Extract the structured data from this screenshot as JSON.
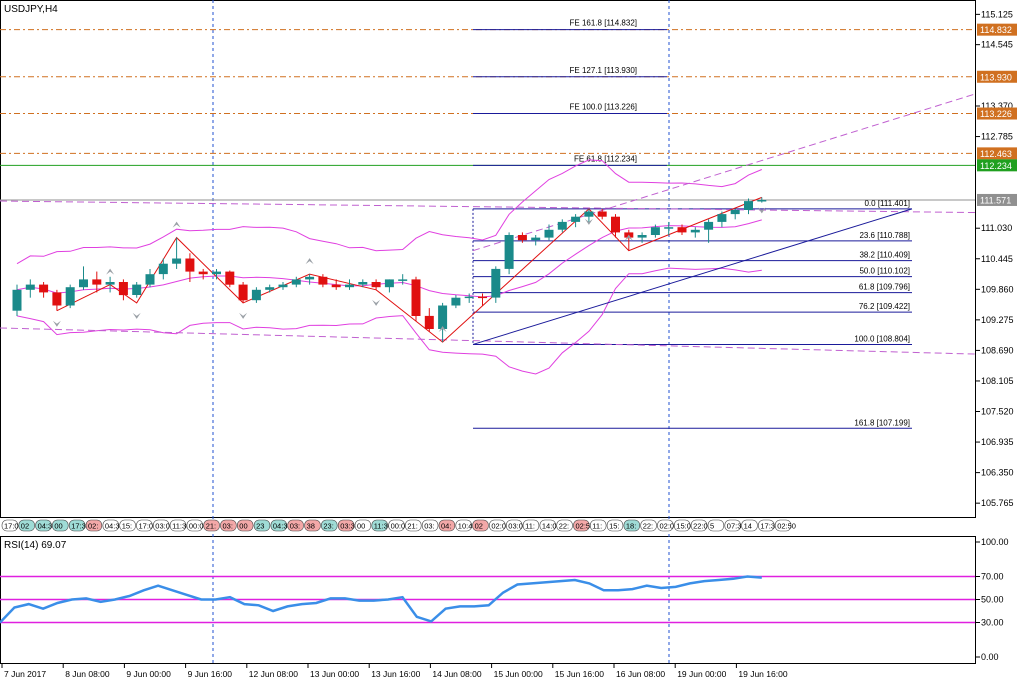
{
  "window": {
    "title": "USDJPY,H4"
  },
  "colors": {
    "bull": "#1a8a8a",
    "bear": "#e01010",
    "bands": "#e040e0",
    "trend_dash": "#c060d0",
    "fib": "#1a1a9a",
    "fe_level": "#d07020",
    "green_level": "#20a020",
    "price_line": "#909090",
    "rsi": "#3a8ee8",
    "rsi_level": "#e020e0",
    "grid_sep": "#2050d0"
  },
  "chart_data": [
    {
      "type": "candlestick",
      "title": "USDJPY,H4",
      "ylim": [
        105.5,
        115.4
      ],
      "y_ticks": [
        "115.125",
        "114.545",
        "113.370",
        "112.785",
        "111.030",
        "110.445",
        "109.860",
        "109.275",
        "108.690",
        "108.105",
        "107.520",
        "106.935",
        "106.350",
        "105.765"
      ],
      "price_labels": [
        {
          "text": "114.832",
          "value": 114.832,
          "color": "#d07020"
        },
        {
          "text": "113.930",
          "value": 113.93,
          "color": "#d07020"
        },
        {
          "text": "113.226",
          "value": 113.226,
          "color": "#d07020"
        },
        {
          "text": "112.463",
          "value": 112.463,
          "color": "#d07020"
        },
        {
          "text": "112.234",
          "value": 112.234,
          "color": "#20a020"
        },
        {
          "text": "111.571",
          "value": 111.571,
          "color": "#909090"
        }
      ],
      "fe_levels": [
        {
          "text": "FE 161.8 [114.832]",
          "value": 114.832
        },
        {
          "text": "FE 127.1 [113.930]",
          "value": 113.93
        },
        {
          "text": "FE 100.0 [113.226]",
          "value": 113.226
        },
        {
          "text": "FE 61.8 [112.234]",
          "value": 112.234
        }
      ],
      "fib_levels": [
        {
          "text": "0.0 [111.401]",
          "value": 111.401
        },
        {
          "text": "23.6 [110.788]",
          "value": 110.788
        },
        {
          "text": "38.2 [110.409]",
          "value": 110.409
        },
        {
          "text": "50.0 [110.102]",
          "value": 110.102
        },
        {
          "text": "61.8 [109.796]",
          "value": 109.796
        },
        {
          "text": "76.2 [109.422]",
          "value": 109.422
        },
        {
          "text": "100.0 [108.804]",
          "value": 108.804
        },
        {
          "text": "161.8 [107.199]",
          "value": 107.199
        }
      ],
      "candles": [
        [
          109.45,
          109.95,
          109.35,
          109.85
        ],
        [
          109.85,
          110.05,
          109.7,
          109.95
        ],
        [
          109.95,
          110.0,
          109.7,
          109.8
        ],
        [
          109.8,
          109.85,
          109.45,
          109.55
        ],
        [
          109.55,
          109.95,
          109.5,
          109.9
        ],
        [
          109.9,
          110.3,
          109.85,
          110.05
        ],
        [
          110.05,
          110.2,
          109.8,
          109.95
        ],
        [
          109.95,
          110.1,
          109.8,
          110.0
        ],
        [
          110.0,
          110.05,
          109.65,
          109.75
        ],
        [
          109.75,
          110.0,
          109.7,
          109.95
        ],
        [
          109.95,
          110.25,
          109.9,
          110.15
        ],
        [
          110.15,
          110.45,
          110.05,
          110.35
        ],
        [
          110.35,
          110.85,
          110.25,
          110.45
        ],
        [
          110.45,
          110.55,
          110.0,
          110.2
        ],
        [
          110.2,
          110.25,
          110.05,
          110.15
        ],
        [
          110.15,
          110.25,
          110.05,
          110.2
        ],
        [
          110.2,
          110.22,
          109.9,
          109.95
        ],
        [
          109.95,
          110.0,
          109.6,
          109.65
        ],
        [
          109.65,
          109.9,
          109.6,
          109.85
        ],
        [
          109.85,
          109.95,
          109.8,
          109.9
        ],
        [
          109.9,
          110.0,
          109.85,
          109.95
        ],
        [
          109.95,
          110.1,
          109.9,
          110.05
        ],
        [
          110.05,
          110.15,
          109.95,
          110.1
        ],
        [
          110.1,
          110.15,
          109.9,
          109.95
        ],
        [
          109.95,
          110.05,
          109.85,
          109.9
        ],
        [
          109.9,
          110.05,
          109.85,
          109.95
        ],
        [
          109.95,
          110.05,
          109.9,
          110.0
        ],
        [
          110.0,
          110.05,
          109.85,
          109.9
        ],
        [
          109.9,
          110.05,
          109.8,
          110.05
        ],
        [
          110.05,
          110.15,
          109.95,
          110.05
        ],
        [
          110.05,
          110.1,
          109.25,
          109.35
        ],
        [
          109.35,
          109.5,
          109.05,
          109.1
        ],
        [
          109.1,
          109.6,
          108.85,
          109.55
        ],
        [
          109.55,
          109.75,
          109.5,
          109.7
        ],
        [
          109.7,
          109.78,
          109.6,
          109.72
        ],
        [
          109.72,
          109.78,
          109.55,
          109.7
        ],
        [
          109.7,
          110.3,
          109.6,
          110.25
        ],
        [
          110.25,
          110.95,
          110.15,
          110.9
        ],
        [
          110.9,
          110.95,
          110.75,
          110.8
        ],
        [
          110.8,
          110.9,
          110.7,
          110.85
        ],
        [
          110.85,
          111.1,
          110.8,
          111.0
        ],
        [
          111.0,
          111.2,
          110.95,
          111.15
        ],
        [
          111.15,
          111.3,
          111.05,
          111.25
        ],
        [
          111.25,
          111.4,
          111.15,
          111.35
        ],
        [
          111.35,
          111.4,
          111.2,
          111.25
        ],
        [
          111.25,
          111.3,
          110.85,
          110.95
        ],
        [
          110.95,
          111.0,
          110.6,
          110.85
        ],
        [
          110.85,
          110.95,
          110.75,
          110.9
        ],
        [
          110.9,
          111.1,
          110.85,
          111.05
        ],
        [
          111.05,
          111.15,
          110.9,
          111.05
        ],
        [
          111.05,
          111.1,
          110.9,
          110.95
        ],
        [
          110.95,
          111.05,
          110.85,
          111.0
        ],
        [
          111.0,
          111.2,
          110.75,
          111.15
        ],
        [
          111.15,
          111.35,
          111.05,
          111.3
        ],
        [
          111.3,
          111.4,
          111.2,
          111.38
        ],
        [
          111.38,
          111.6,
          111.3,
          111.55
        ],
        [
          111.55,
          111.62,
          111.52,
          111.57
        ]
      ],
      "x_tick_labels": [
        "7 Jun 2017",
        "8 Jun 08:00",
        "9 Jun 00:00",
        "9 Jun 16:00",
        "12 Jun 08:00",
        "13 Jun 00:00",
        "13 Jun 16:00",
        "14 Jun 08:00",
        "15 Jun 00:00",
        "15 Jun 16:00",
        "16 Jun 08:00",
        "19 Jun 00:00",
        "19 Jun 16:00"
      ],
      "news_times": [
        {
          "text": "17:00",
          "color": "none"
        },
        {
          "text": "02",
          "color": "teal"
        },
        {
          "text": "04:30",
          "color": "teal"
        },
        {
          "text": "00",
          "color": "teal"
        },
        {
          "text": "17:30",
          "color": "teal"
        },
        {
          "text": "02:",
          "color": "red"
        },
        {
          "text": "04:30",
          "color": "none"
        },
        {
          "text": "15:",
          "color": "none"
        },
        {
          "text": "17:00",
          "color": "none"
        },
        {
          "text": "03:00",
          "color": "none"
        },
        {
          "text": "11:30",
          "color": "none"
        },
        {
          "text": "00:00",
          "color": "none"
        },
        {
          "text": "21:",
          "color": "red"
        },
        {
          "text": "03:",
          "color": "red"
        },
        {
          "text": "00",
          "color": "red"
        },
        {
          "text": "23",
          "color": "teal"
        },
        {
          "text": "04:30",
          "color": "teal"
        },
        {
          "text": "03:",
          "color": "red"
        },
        {
          "text": "38",
          "color": "red"
        },
        {
          "text": "23:",
          "color": "teal"
        },
        {
          "text": "03:30",
          "color": "red"
        },
        {
          "text": "00",
          "color": "none"
        },
        {
          "text": "11:30",
          "color": "teal"
        },
        {
          "text": "00:00",
          "color": "none"
        },
        {
          "text": "21:",
          "color": "none"
        },
        {
          "text": "03:",
          "color": "none"
        },
        {
          "text": "04:",
          "color": "red"
        },
        {
          "text": "10:40",
          "color": "none"
        },
        {
          "text": "02",
          "color": "red"
        },
        {
          "text": "02:00",
          "color": "none"
        },
        {
          "text": "03:00",
          "color": "none"
        },
        {
          "text": "11:",
          "color": "none"
        },
        {
          "text": "14:00",
          "color": "none"
        },
        {
          "text": "22:",
          "color": "none"
        },
        {
          "text": "02:50",
          "color": "red"
        },
        {
          "text": "11:",
          "color": "none"
        },
        {
          "text": "15:",
          "color": "none"
        },
        {
          "text": "18:",
          "color": "teal"
        },
        {
          "text": "22:",
          "color": "none"
        },
        {
          "text": "02:00",
          "color": "none"
        },
        {
          "text": "15:00",
          "color": "none"
        },
        {
          "text": "22:00",
          "color": "none"
        },
        {
          "text": "5",
          "color": "none"
        },
        {
          "text": "07:30",
          "color": "none"
        },
        {
          "text": "14",
          "color": "none"
        },
        {
          "text": "17:30",
          "color": "none"
        },
        {
          "text": "02:50",
          "color": "none"
        }
      ]
    },
    {
      "type": "line",
      "title": "RSI(14) 69.07",
      "ylim": [
        0,
        100
      ],
      "y_ticks": [
        "100.00",
        "70.00",
        "50.00",
        "30.00",
        "0.00"
      ],
      "levels": [
        70,
        50,
        30
      ],
      "values": [
        30,
        43,
        46,
        42,
        47,
        50,
        51,
        48,
        50,
        53,
        58,
        62,
        58,
        54,
        50,
        50,
        52,
        46,
        45,
        40,
        44,
        46,
        47,
        51,
        51,
        49,
        49,
        50,
        52,
        35,
        31,
        42,
        44,
        44,
        45,
        56,
        63,
        64,
        65,
        66,
        67,
        64,
        58,
        58,
        59,
        62,
        60,
        61,
        64,
        66,
        67,
        68,
        70,
        69
      ]
    }
  ]
}
